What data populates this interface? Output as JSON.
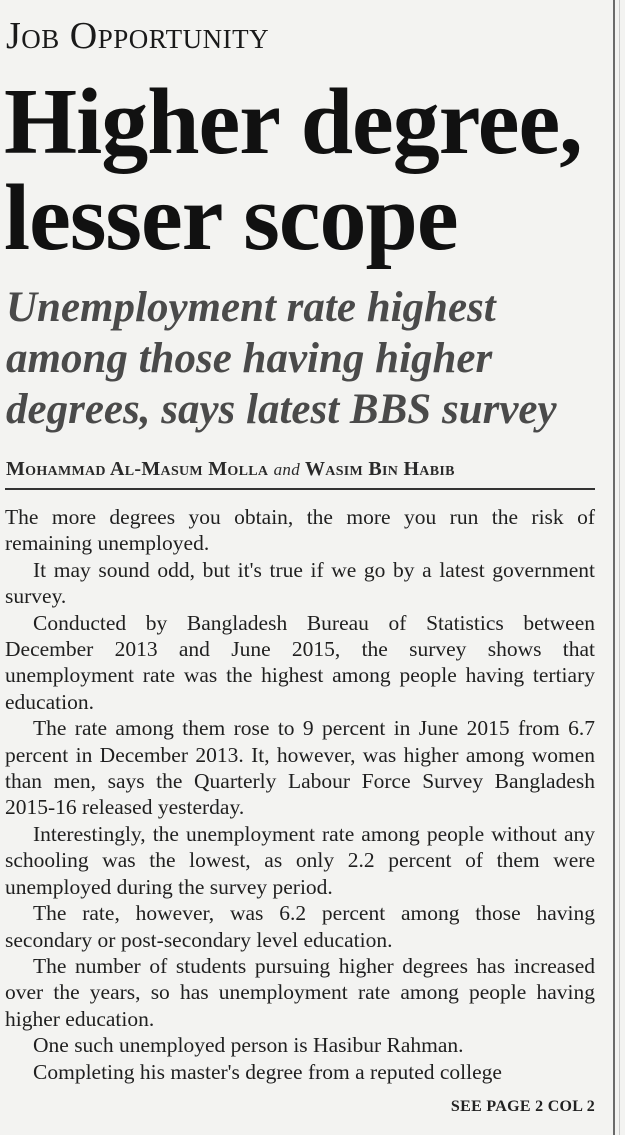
{
  "kicker": "Job Opportunity",
  "headline": [
    "Higher degree,",
    "lesser scope"
  ],
  "subhead": "Unemployment rate highest among those having higher degrees, says latest BBS survey",
  "byline": {
    "author1": "Mohammad Al-Masum Molla",
    "conjunction": "and",
    "author2": "Wasim Bin Habib"
  },
  "paragraphs": [
    "The more degrees you obtain, the more you run the risk of remaining unemployed.",
    "It may sound odd, but it's true if we go by a latest government survey.",
    "Conducted by Bangladesh Bureau of Statistics between December 2013 and June 2015, the survey shows that unemployment rate was the highest among people having tertiary education.",
    "The rate among them rose to 9 percent in June 2015 from 6.7 percent in December 2013. It, however, was higher among women than men, says the Quarterly Labour Force Survey Bangladesh 2015-16 released yesterday.",
    "Interestingly, the unemployment rate among people without any schooling was the lowest, as only 2.2 percent of them were unemployed during the survey period.",
    "The rate, however, was 6.2 percent among those having secondary or post-secondary level education.",
    "The number of students pursuing higher degrees has increased over the years, so has unemployment rate among people having higher education.",
    "One such unemployed person is Hasibur Rahman.",
    "Completing his master's degree from a reputed college"
  ],
  "jump": "SEE PAGE 2 COL 2"
}
